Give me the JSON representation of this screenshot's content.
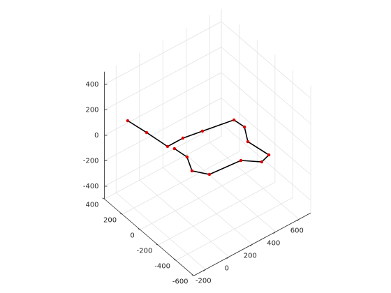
{
  "chart_data": {
    "type": "line3d",
    "x": [
      -88,
      -61,
      -36,
      96,
      241,
      476,
      488,
      416,
      445,
      365,
      264,
      13,
      -57,
      2,
      -13
    ],
    "y": [
      417,
      240,
      39,
      40,
      12,
      -34,
      -136,
      -268,
      -465,
      -490,
      -389,
      -365,
      -262,
      -129,
      -8
    ],
    "z": [
      0,
      0,
      0,
      0,
      0,
      0,
      0,
      0,
      0,
      0,
      0,
      0,
      0,
      0,
      0
    ],
    "color": "#000000",
    "marker_color": "#e00000",
    "xlim": [
      -300,
      700
    ],
    "ylim": [
      -600,
      400
    ],
    "zlim": [
      -500,
      500
    ],
    "xticks": [
      -200,
      0,
      200,
      400,
      600
    ],
    "yticks": [
      -600,
      -400,
      -200,
      0,
      200,
      400
    ],
    "zticks": [
      -400,
      -200,
      0,
      200,
      400
    ],
    "grid": true
  }
}
